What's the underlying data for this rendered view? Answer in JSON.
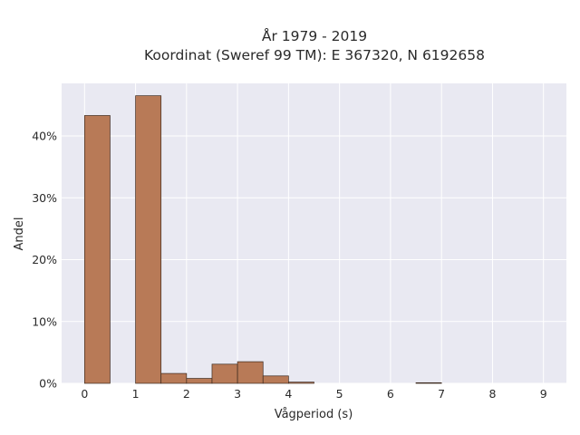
{
  "chart_data": {
    "type": "bar",
    "title_lines": [
      "År 1979 - 2019",
      "Koordinat (Sweref 99 TM): E 367320, N 6192658"
    ],
    "xlabel": "Vågperiod (s)",
    "ylabel": "Andel",
    "bin_width": 0.5,
    "bins": [
      {
        "start": 0.0,
        "value": 43.3
      },
      {
        "start": 0.5,
        "value": 0.0
      },
      {
        "start": 1.0,
        "value": 46.5
      },
      {
        "start": 1.5,
        "value": 1.6
      },
      {
        "start": 2.0,
        "value": 0.8
      },
      {
        "start": 2.5,
        "value": 3.1
      },
      {
        "start": 3.0,
        "value": 3.5
      },
      {
        "start": 3.5,
        "value": 1.2
      },
      {
        "start": 4.0,
        "value": 0.2
      },
      {
        "start": 4.5,
        "value": 0.0
      },
      {
        "start": 5.0,
        "value": 0.0
      },
      {
        "start": 5.5,
        "value": 0.0
      },
      {
        "start": 6.0,
        "value": 0.0
      },
      {
        "start": 6.5,
        "value": 0.1
      },
      {
        "start": 7.0,
        "value": 0.0
      }
    ],
    "xlim": [
      -0.45,
      9.45
    ],
    "ylim": [
      0,
      48.5
    ],
    "x_ticks": [
      {
        "value": 0,
        "label": "0"
      },
      {
        "value": 1,
        "label": "1"
      },
      {
        "value": 2,
        "label": "2"
      },
      {
        "value": 3,
        "label": "3"
      },
      {
        "value": 4,
        "label": "4"
      },
      {
        "value": 5,
        "label": "5"
      },
      {
        "value": 6,
        "label": "6"
      },
      {
        "value": 7,
        "label": "7"
      },
      {
        "value": 8,
        "label": "8"
      },
      {
        "value": 9,
        "label": "9"
      }
    ],
    "y_ticks": [
      {
        "value": 0,
        "label": "0%"
      },
      {
        "value": 10,
        "label": "10%"
      },
      {
        "value": 20,
        "label": "20%"
      },
      {
        "value": 30,
        "label": "30%"
      },
      {
        "value": 40,
        "label": "40%"
      }
    ],
    "grid": true,
    "colors": {
      "bar_fill": "#b87a57",
      "bar_edge": "#3d2a1e",
      "plot_bg": "#e9e9f2",
      "grid": "#ffffff"
    }
  }
}
